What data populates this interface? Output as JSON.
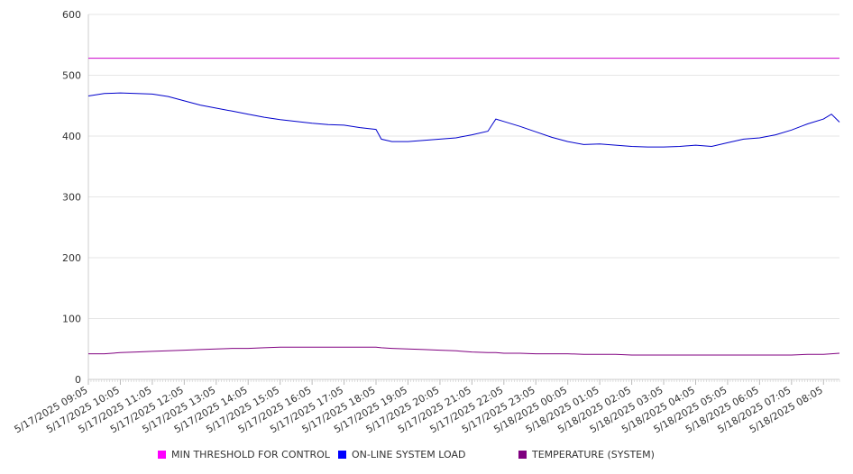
{
  "chart_data": {
    "type": "line",
    "title": "",
    "xlabel": "",
    "ylabel": "",
    "ylim": [
      0,
      600
    ],
    "y_ticks": [
      0,
      100,
      200,
      300,
      400,
      500,
      600
    ],
    "grid": "horizontal",
    "legend_position": "bottom",
    "x_tick_labels": [
      "5/17/2025 09:05",
      "5/17/2025 10:05",
      "5/17/2025 11:05",
      "5/17/2025 12:05",
      "5/17/2025 13:05",
      "5/17/2025 14:05",
      "5/17/2025 15:05",
      "5/17/2025 16:05",
      "5/17/2025 17:05",
      "5/17/2025 18:05",
      "5/17/2025 19:05",
      "5/17/2025 20:05",
      "5/17/2025 21:05",
      "5/17/2025 22:05",
      "5/17/2025 23:05",
      "5/18/2025 00:05",
      "5/18/2025 01:05",
      "5/18/2025 02:05",
      "5/18/2025 03:05",
      "5/18/2025 04:05",
      "5/18/2025 05:05",
      "5/18/2025 06:05",
      "5/18/2025 07:05",
      "5/18/2025 08:05"
    ],
    "x": [
      "5/17/2025 09:05",
      "5/17/2025 09:35",
      "5/17/2025 10:05",
      "5/17/2025 10:35",
      "5/17/2025 11:05",
      "5/17/2025 11:35",
      "5/17/2025 12:05",
      "5/17/2025 12:35",
      "5/17/2025 13:05",
      "5/17/2025 13:35",
      "5/17/2025 14:05",
      "5/17/2025 14:35",
      "5/17/2025 15:05",
      "5/17/2025 15:35",
      "5/17/2025 16:05",
      "5/17/2025 16:35",
      "5/17/2025 17:05",
      "5/17/2025 17:35",
      "5/17/2025 18:05",
      "5/17/2025 18:15",
      "5/17/2025 18:35",
      "5/17/2025 19:05",
      "5/17/2025 19:35",
      "5/17/2025 20:05",
      "5/17/2025 20:35",
      "5/17/2025 21:05",
      "5/17/2025 21:35",
      "5/17/2025 21:50",
      "5/17/2025 22:05",
      "5/17/2025 22:35",
      "5/17/2025 23:05",
      "5/17/2025 23:35",
      "5/18/2025 00:05",
      "5/18/2025 00:35",
      "5/18/2025 01:05",
      "5/18/2025 01:35",
      "5/18/2025 02:05",
      "5/18/2025 02:35",
      "5/18/2025 03:05",
      "5/18/2025 03:35",
      "5/18/2025 04:05",
      "5/18/2025 04:35",
      "5/18/2025 05:05",
      "5/18/2025 05:35",
      "5/18/2025 06:05",
      "5/18/2025 06:35",
      "5/18/2025 07:05",
      "5/18/2025 07:35",
      "5/18/2025 08:05",
      "5/18/2025 08:20",
      "5/18/2025 08:35"
    ],
    "series": [
      {
        "name": "MIN THRESHOLD FOR CONTROL",
        "color": "#cc00cc",
        "values": [
          528,
          528,
          528,
          528,
          528,
          528,
          528,
          528,
          528,
          528,
          528,
          528,
          528,
          528,
          528,
          528,
          528,
          528,
          528,
          528,
          528,
          528,
          528,
          528,
          528,
          528,
          528,
          528,
          528,
          528,
          528,
          528,
          528,
          528,
          528,
          528,
          528,
          528,
          528,
          528,
          528,
          528,
          528,
          528,
          528,
          528,
          528,
          528,
          528,
          528,
          528
        ]
      },
      {
        "name": "ON-LINE SYSTEM LOAD",
        "color": "#0000cc",
        "values": [
          466,
          470,
          471,
          470,
          469,
          465,
          458,
          451,
          446,
          441,
          436,
          431,
          427,
          424,
          421,
          419,
          418,
          414,
          411,
          395,
          391,
          391,
          393,
          395,
          397,
          402,
          408,
          428,
          424,
          416,
          407,
          398,
          391,
          386,
          387,
          385,
          383,
          382,
          382,
          383,
          385,
          383,
          389,
          395,
          397,
          402,
          410,
          420,
          428,
          436,
          423
        ]
      },
      {
        "name": "TEMPERATURE (SYSTEM)",
        "color": "#800080",
        "values": [
          42,
          42,
          44,
          45,
          46,
          47,
          48,
          49,
          50,
          51,
          51,
          52,
          53,
          53,
          53,
          53,
          53,
          53,
          53,
          52,
          51,
          50,
          49,
          48,
          47,
          45,
          44,
          44,
          43,
          43,
          42,
          42,
          42,
          41,
          41,
          41,
          40,
          40,
          40,
          40,
          40,
          40,
          40,
          40,
          40,
          40,
          40,
          41,
          41,
          42,
          43
        ]
      }
    ]
  }
}
